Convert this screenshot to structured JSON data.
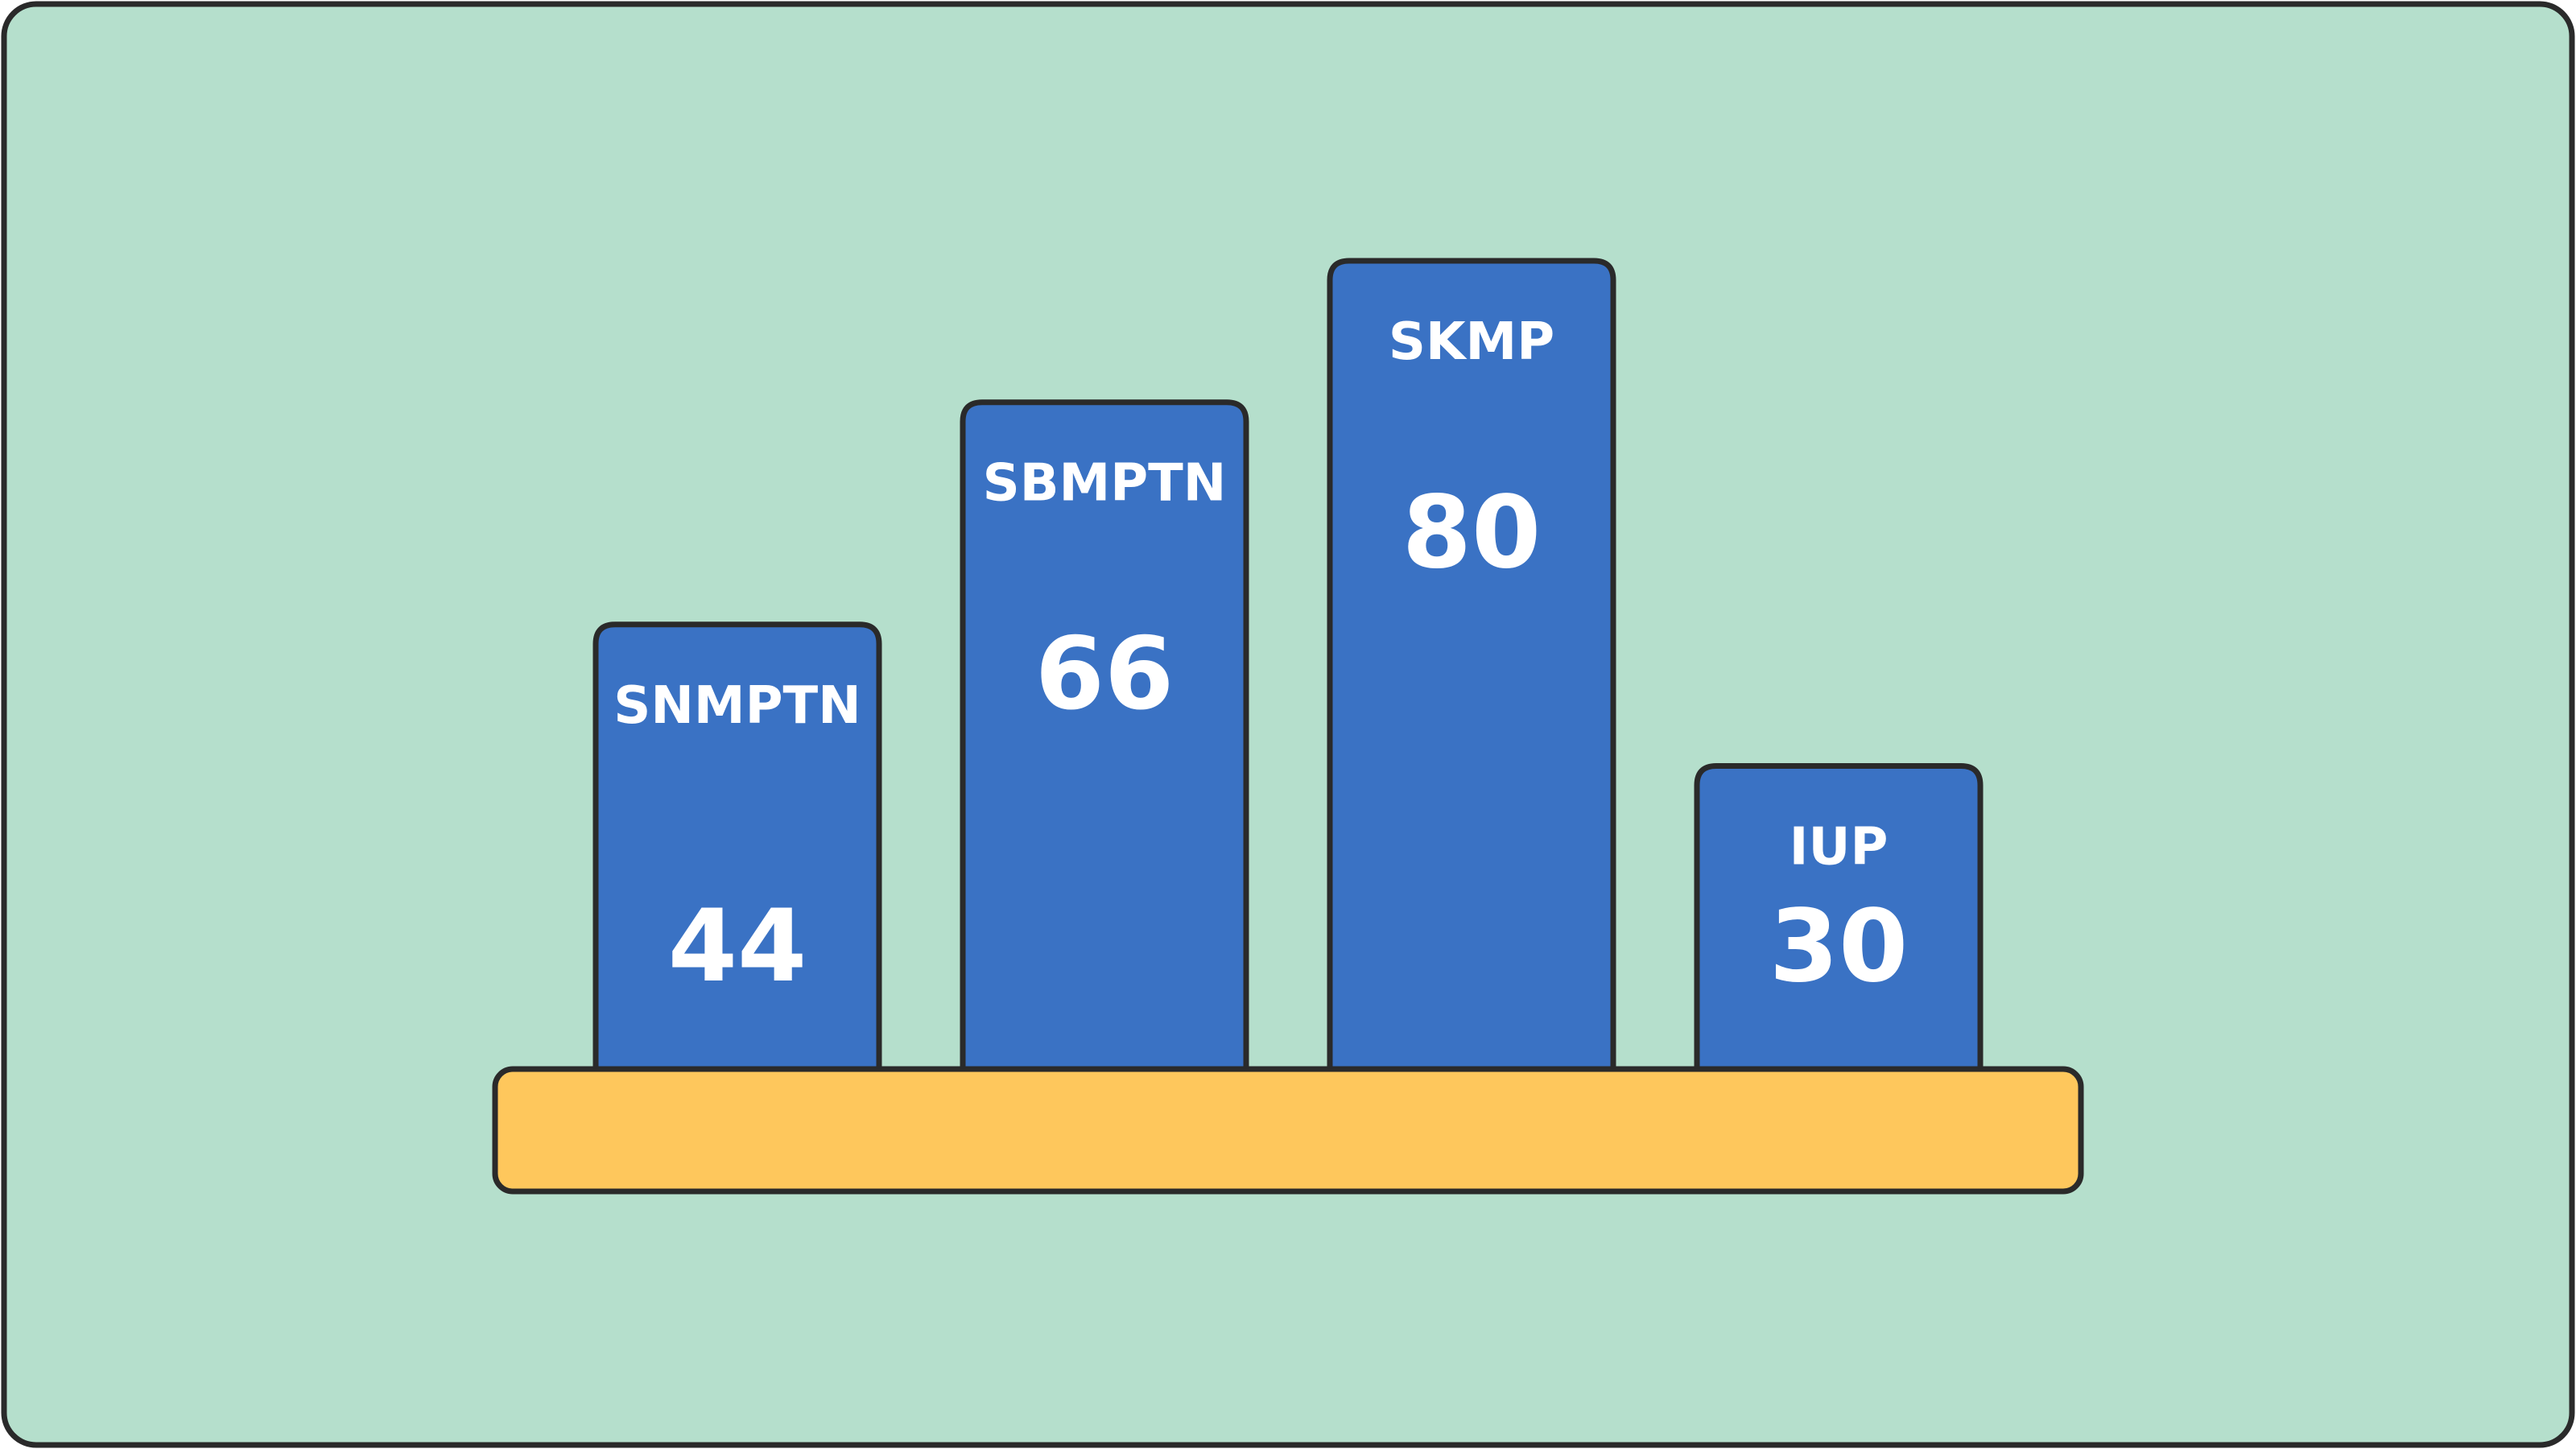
{
  "colors": {
    "background": "#b5dfcc",
    "bar_fill": "#3a72c4",
    "base_fill": "#fec75c",
    "outline": "#2a2a2a",
    "text": "#ffffff"
  },
  "chart_data": {
    "type": "bar",
    "title": "",
    "xlabel": "",
    "ylabel": "",
    "grid": false,
    "legend": "none",
    "ylim": [
      0,
      100
    ],
    "categories": [
      "SNMPTN",
      "SBMPTN",
      "SKMP",
      "IUP"
    ],
    "values": [
      44,
      66,
      80,
      30
    ],
    "value_labels": [
      "44",
      "66",
      "80",
      "30"
    ]
  }
}
